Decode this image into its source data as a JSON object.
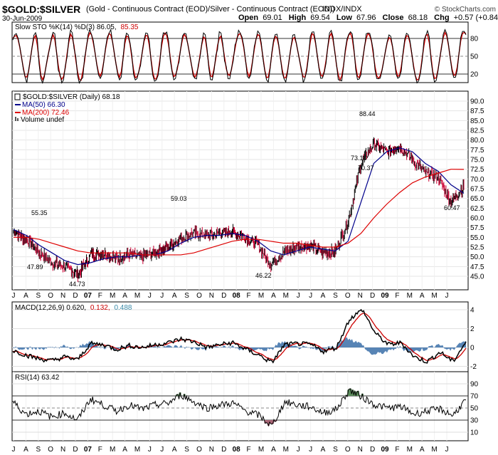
{
  "header": {
    "symbol": "$GOLD:$SILVER",
    "description": "(Gold - Continuous Contract (EOD)/Silver - Continuous Contract (EOD))",
    "exchange": "INDX/INDX",
    "credit": "© StockCharts.com",
    "date": "30-Jun-2009",
    "open_label": "Open",
    "open": "69.01",
    "high_label": "High",
    "high": "69.54",
    "low_label": "Low",
    "low": "67.96",
    "close_label": "Close",
    "close": "68.18",
    "chg_label": "Chg",
    "chg": "+0.57 (+0.84%)"
  },
  "stoch": {
    "legend_prefix": "Slow STO %K(14) %D(3) 86.05,",
    "d_value": "85.35",
    "ticks": [
      "80",
      "50",
      "20"
    ],
    "colors": {
      "k": "#000000",
      "d": "#cc0000"
    }
  },
  "price": {
    "legend_title": "$GOLD:$SILVER (Daily) 68.18",
    "ma50_label": "MA(50) 66.30",
    "ma200_label": "MA(200) 72.46",
    "volume_label": "Volume undef",
    "ticks": [
      "90.0",
      "87.5",
      "85.0",
      "82.5",
      "80.0",
      "77.5",
      "75.0",
      "72.5",
      "70.0",
      "67.5",
      "65.0",
      "62.5",
      "60.0",
      "57.5",
      "55.0",
      "52.5",
      "50.0",
      "47.5",
      "45.0"
    ],
    "annotations": [
      "88.44",
      "73.18",
      "70.37",
      "60.47",
      "59.03",
      "55.35",
      "47.89",
      "44.73",
      "46.22"
    ],
    "colors": {
      "up": "#000000",
      "down": "#cc0033",
      "ma50": "#00008b",
      "ma200": "#dd0000"
    }
  },
  "x_axis": {
    "labels": [
      "J",
      "A",
      "S",
      "O",
      "N",
      "D",
      "07",
      "F",
      "M",
      "A",
      "M",
      "J",
      "J",
      "A",
      "S",
      "O",
      "N",
      "D",
      "08",
      "F",
      "M",
      "A",
      "M",
      "J",
      "J",
      "A",
      "S",
      "O",
      "N",
      "D",
      "09",
      "F",
      "M",
      "A",
      "M",
      "J"
    ],
    "bold": [
      "07",
      "08",
      "09"
    ]
  },
  "macd": {
    "legend_prefix": "MACD(12,26,9) 0.620,",
    "signal_value": "0.132,",
    "hist_value": "0.488",
    "ticks": [
      "4",
      "2",
      "0",
      "-2"
    ],
    "colors": {
      "macd": "#000000",
      "signal": "#cc0000",
      "hist": "#3a6fa8"
    }
  },
  "rsi": {
    "legend": "RSI(14) 63.42",
    "ticks": [
      "90",
      "70",
      "50",
      "30",
      "10"
    ],
    "colors": {
      "line": "#000000",
      "over": "#5a8a5a",
      "under": "#aa6677"
    }
  },
  "chart_data": {
    "type": "line",
    "title": "$GOLD:$SILVER",
    "series": [
      {
        "name": "$GOLD:$SILVER (Daily)",
        "x": [
          "2006-07",
          "2006-08",
          "2006-09",
          "2006-10",
          "2006-11",
          "2006-12",
          "2007-01",
          "2007-02",
          "2007-03",
          "2007-04",
          "2007-05",
          "2007-06",
          "2007-07",
          "2007-08",
          "2007-09",
          "2007-10",
          "2007-11",
          "2007-12",
          "2008-01",
          "2008-02",
          "2008-03",
          "2008-04",
          "2008-05",
          "2008-06",
          "2008-07",
          "2008-08",
          "2008-09",
          "2008-10",
          "2008-11",
          "2008-12",
          "2009-01",
          "2009-02",
          "2009-03",
          "2009-04",
          "2009-05",
          "2009-06"
        ],
        "values": [
          56.5,
          54.5,
          51.0,
          48.5,
          47.5,
          45.5,
          50.5,
          51.0,
          49.5,
          50.5,
          50.0,
          51.0,
          52.5,
          55.0,
          56.0,
          55.5,
          56.0,
          56.5,
          55.0,
          53.0,
          48.0,
          51.0,
          52.5,
          53.0,
          51.0,
          51.5,
          59.0,
          74.0,
          79.0,
          77.0,
          78.5,
          75.0,
          71.5,
          70.5,
          64.0,
          68.18
        ]
      },
      {
        "name": "MA(50)",
        "x": [
          "2006-07",
          "2006-08",
          "2006-09",
          "2006-10",
          "2006-11",
          "2006-12",
          "2007-01",
          "2007-02",
          "2007-03",
          "2007-04",
          "2007-05",
          "2007-06",
          "2007-07",
          "2007-08",
          "2007-09",
          "2007-10",
          "2007-11",
          "2007-12",
          "2008-01",
          "2008-02",
          "2008-03",
          "2008-04",
          "2008-05",
          "2008-06",
          "2008-07",
          "2008-08",
          "2008-09",
          "2008-10",
          "2008-11",
          "2008-12",
          "2009-01",
          "2009-02",
          "2009-03",
          "2009-04",
          "2009-05",
          "2009-06"
        ],
        "values": [
          57.0,
          55.5,
          53.0,
          51.0,
          49.0,
          48.0,
          48.5,
          49.5,
          50.0,
          50.0,
          50.5,
          50.5,
          51.5,
          53.5,
          55.0,
          55.5,
          55.5,
          56.0,
          55.5,
          54.0,
          51.5,
          50.5,
          51.5,
          52.5,
          52.0,
          51.5,
          54.0,
          64.0,
          74.0,
          77.0,
          78.0,
          77.0,
          74.0,
          72.0,
          68.5,
          66.3
        ]
      },
      {
        "name": "MA(200)",
        "x": [
          "2006-07",
          "2006-08",
          "2006-09",
          "2006-10",
          "2006-11",
          "2006-12",
          "2007-01",
          "2007-02",
          "2007-03",
          "2007-04",
          "2007-05",
          "2007-06",
          "2007-07",
          "2007-08",
          "2007-09",
          "2007-10",
          "2007-11",
          "2007-12",
          "2008-01",
          "2008-02",
          "2008-03",
          "2008-04",
          "2008-05",
          "2008-06",
          "2008-07",
          "2008-08",
          "2008-09",
          "2008-10",
          "2008-11",
          "2008-12",
          "2009-01",
          "2009-02",
          "2009-03",
          "2009-04",
          "2009-05",
          "2009-06"
        ],
        "values": [
          55.0,
          55.0,
          54.5,
          53.5,
          52.5,
          51.5,
          51.0,
          51.0,
          51.0,
          51.0,
          50.5,
          50.5,
          50.5,
          50.5,
          51.0,
          52.0,
          53.0,
          54.0,
          54.5,
          54.5,
          54.0,
          53.5,
          53.5,
          53.0,
          52.5,
          52.5,
          53.5,
          56.0,
          60.0,
          63.5,
          66.5,
          69.0,
          70.5,
          71.5,
          72.5,
          72.46
        ]
      },
      {
        "name": "MACD(12,26,9)",
        "x": [
          "2006-07",
          "2006-08",
          "2006-09",
          "2006-10",
          "2006-11",
          "2006-12",
          "2007-01",
          "2007-02",
          "2007-03",
          "2007-04",
          "2007-05",
          "2007-06",
          "2007-07",
          "2007-08",
          "2007-09",
          "2007-10",
          "2007-11",
          "2007-12",
          "2008-01",
          "2008-02",
          "2008-03",
          "2008-04",
          "2008-05",
          "2008-06",
          "2008-07",
          "2008-08",
          "2008-09",
          "2008-10",
          "2008-11",
          "2008-12",
          "2009-01",
          "2009-02",
          "2009-03",
          "2009-04",
          "2009-05",
          "2009-06"
        ],
        "values": [
          -0.3,
          -0.8,
          -1.2,
          -1.4,
          -1.0,
          -1.3,
          0.4,
          0.3,
          -0.2,
          0.2,
          0.0,
          0.3,
          0.5,
          0.9,
          0.6,
          0.0,
          0.3,
          0.5,
          -0.2,
          -0.8,
          -1.6,
          0.3,
          0.4,
          0.3,
          -0.4,
          0.0,
          3.0,
          4.0,
          1.5,
          0.3,
          0.5,
          -1.0,
          -1.5,
          -0.5,
          -1.5,
          0.62
        ]
      },
      {
        "name": "RSI(14)",
        "x": [
          "2006-07",
          "2006-08",
          "2006-09",
          "2006-10",
          "2006-11",
          "2006-12",
          "2007-01",
          "2007-02",
          "2007-03",
          "2007-04",
          "2007-05",
          "2007-06",
          "2007-07",
          "2007-08",
          "2007-09",
          "2007-10",
          "2007-11",
          "2007-12",
          "2008-01",
          "2008-02",
          "2008-03",
          "2008-04",
          "2008-05",
          "2008-06",
          "2008-07",
          "2008-08",
          "2008-09",
          "2008-10",
          "2008-11",
          "2008-12",
          "2009-01",
          "2009-02",
          "2009-03",
          "2009-04",
          "2009-05",
          "2009-06"
        ],
        "values": [
          60,
          40,
          45,
          35,
          42,
          30,
          65,
          55,
          45,
          55,
          48,
          55,
          58,
          72,
          60,
          50,
          55,
          58,
          45,
          38,
          20,
          60,
          55,
          52,
          42,
          48,
          80,
          68,
          55,
          50,
          52,
          40,
          45,
          48,
          38,
          63.42
        ]
      }
    ],
    "ylim": [
      44,
      91
    ],
    "grid": true,
    "legend": "top-left"
  }
}
